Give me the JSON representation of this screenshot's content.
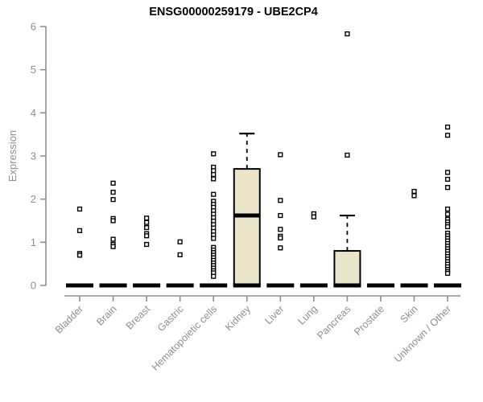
{
  "chart_data": {
    "type": "boxplot",
    "title": "ENSG00000259179 - UBE2CP4",
    "ylabel": "Expression",
    "xlabel": "",
    "ylim": [
      0,
      6
    ],
    "yticks": [
      0,
      1,
      2,
      3,
      4,
      5,
      6
    ],
    "grid": false,
    "legend": "none",
    "colors": {
      "box_fill": "#EBE5CA",
      "box_stroke": "#000000",
      "median": "#000000",
      "point_stroke": "#000000",
      "point_fill": "#ffffff",
      "axis": "#8f8f8f",
      "title": "#000000"
    },
    "categories": [
      {
        "label": "Bladder",
        "q1": 0,
        "median": 0,
        "q3": 0,
        "whisker_low": 0,
        "whisker_high": 0,
        "points": [
          1.77,
          1.27,
          0.74,
          0.7
        ]
      },
      {
        "label": "Brain",
        "q1": 0,
        "median": 0,
        "q3": 0,
        "whisker_low": 0,
        "whisker_high": 0,
        "points": [
          2.37,
          2.16,
          1.99,
          1.55,
          1.5,
          1.07,
          0.95,
          0.9
        ]
      },
      {
        "label": "Breast",
        "q1": 0,
        "median": 0,
        "q3": 0,
        "whisker_low": 0,
        "whisker_high": 0,
        "points": [
          1.56,
          1.46,
          1.34,
          1.2,
          1.15,
          0.95
        ]
      },
      {
        "label": "Gastric",
        "q1": 0,
        "median": 0,
        "q3": 0,
        "whisker_low": 0,
        "whisker_high": 0,
        "points": [
          1.01,
          0.71
        ]
      },
      {
        "label": "Hematopoietic cells",
        "q1": 0,
        "median": 0,
        "q3": 0,
        "whisker_low": 0,
        "whisker_high": 0,
        "points": [
          3.05,
          2.74,
          2.66,
          2.57,
          2.47,
          2.11,
          1.95,
          1.88,
          1.81,
          1.73,
          1.65,
          1.57,
          1.49,
          1.41,
          1.33,
          1.25,
          1.17,
          1.09,
          0.88,
          0.82,
          0.76,
          0.7,
          0.64,
          0.58,
          0.52,
          0.46,
          0.4,
          0.34,
          0.29,
          0.21
        ]
      },
      {
        "label": "Kidney",
        "q1": 0,
        "median": 1.62,
        "q3": 2.7,
        "whisker_low": 0,
        "whisker_high": 3.52,
        "points": []
      },
      {
        "label": "Liver",
        "q1": 0,
        "median": 0,
        "q3": 0,
        "whisker_low": 0,
        "whisker_high": 0,
        "points": [
          3.03,
          1.97,
          1.62,
          1.3,
          1.14,
          1.1,
          0.87
        ]
      },
      {
        "label": "Lung",
        "q1": 0,
        "median": 0,
        "q3": 0,
        "whisker_low": 0,
        "whisker_high": 0,
        "points": [
          1.66,
          1.59
        ]
      },
      {
        "label": "Pancreas",
        "q1": 0,
        "median": 0,
        "q3": 0.8,
        "whisker_low": 0,
        "whisker_high": 1.62,
        "points": [
          5.83,
          3.02
        ]
      },
      {
        "label": "Prostate",
        "q1": 0,
        "median": 0,
        "q3": 0,
        "whisker_low": 0,
        "whisker_high": 0,
        "points": []
      },
      {
        "label": "Skin",
        "q1": 0,
        "median": 0,
        "q3": 0,
        "whisker_low": 0,
        "whisker_high": 0,
        "points": [
          2.18,
          2.08
        ]
      },
      {
        "label": "Unknown / Other",
        "q1": 0,
        "median": 0,
        "q3": 0,
        "whisker_low": 0,
        "whisker_high": 0,
        "points": [
          3.67,
          3.48,
          2.62,
          2.46,
          2.27,
          1.77,
          1.65,
          1.53,
          1.47,
          1.41,
          1.36,
          1.21,
          1.15,
          1.09,
          1.03,
          0.97,
          0.91,
          0.85,
          0.79,
          0.73,
          0.67,
          0.61,
          0.55,
          0.49,
          0.43,
          0.37,
          0.32,
          0.28
        ]
      }
    ]
  }
}
